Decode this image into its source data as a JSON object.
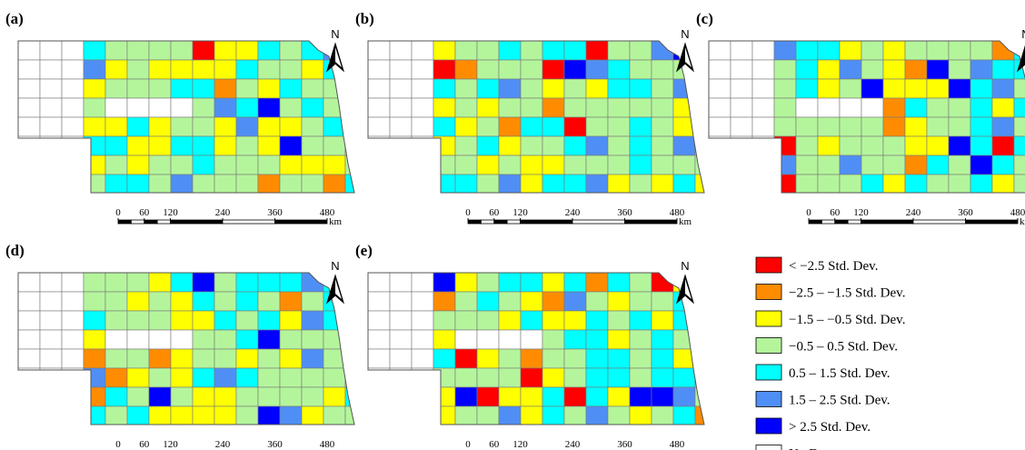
{
  "panels": [
    {
      "label": "(a)"
    },
    {
      "label": "(b)"
    },
    {
      "label": "(c)"
    },
    {
      "label": "(d)"
    },
    {
      "label": "(e)"
    }
  ],
  "north": "N",
  "scale": {
    "ticks": [
      0,
      60,
      120,
      240,
      360,
      480
    ],
    "unit": "km"
  },
  "legend": [
    {
      "label": "< −2.5 Std. Dev.",
      "color": "#ff0000"
    },
    {
      "label": "−2.5 – −1.5 Std. Dev.",
      "color": "#ff8c00"
    },
    {
      "label": "−1.5 – −0.5 Std. Dev.",
      "color": "#ffff00"
    },
    {
      "label": "−0.5 – 0.5 Std. Dev.",
      "color": "#b4f59c"
    },
    {
      "label": "0.5 – 1.5 Std. Dev.",
      "color": "#00ffff"
    },
    {
      "label": "1.5 – 2.5 Std. Dev.",
      "color": "#4f8ff5"
    },
    {
      "label": "> 2.5 Std. Dev.",
      "color": "#0000ff"
    },
    {
      "label": "No Data",
      "color": "#ffffff"
    }
  ]
}
